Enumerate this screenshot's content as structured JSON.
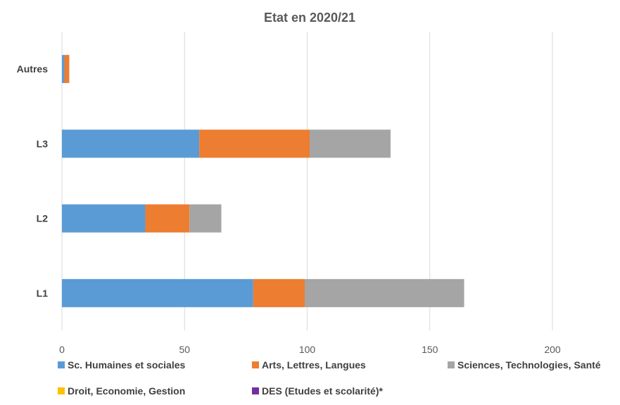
{
  "chart_data": {
    "type": "bar",
    "orientation": "horizontal",
    "stacked": true,
    "title": "Etat en 2020/21",
    "categories": [
      "Autres",
      "L3",
      "L2",
      "L1"
    ],
    "xlim": [
      0,
      200
    ],
    "x_ticks": [
      "0",
      "50",
      "100",
      "150",
      "200"
    ],
    "grid": true,
    "legend_position": "bottom",
    "series": [
      {
        "name": "Sc. Humaines et sociales",
        "color": "#5b9bd5",
        "values": [
          1,
          56,
          34,
          78
        ]
      },
      {
        "name": "Arts, Lettres, Langues",
        "color": "#ed7d31",
        "values": [
          2,
          45,
          18,
          21
        ]
      },
      {
        "name": "Sciences, Technologies, Santé",
        "color": "#a5a5a5",
        "values": [
          0,
          33,
          13,
          65
        ]
      },
      {
        "name": "Droit, Economie, Gestion",
        "color": "#ffc000",
        "values": [
          0,
          0,
          0,
          0
        ]
      },
      {
        "name": "DES (Etudes et scolarité)*",
        "color": "#7030a0",
        "values": [
          0,
          0,
          0,
          0
        ]
      }
    ]
  }
}
